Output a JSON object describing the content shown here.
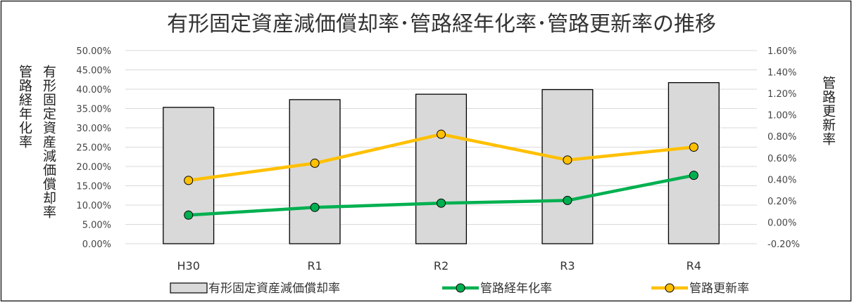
{
  "chart_data": {
    "type": "bar",
    "title": "有形固定資産減価償却率･管路経年化率･管路更新率の推移",
    "categories": [
      "H30",
      "R1",
      "R2",
      "R3",
      "R4"
    ],
    "series": [
      {
        "name": "有形固定資産減価償却率",
        "type": "bar",
        "axis": "left",
        "color": "#d9d9d9",
        "values": [
          35.3,
          37.3,
          38.7,
          39.9,
          41.7
        ]
      },
      {
        "name": "管路経年化率",
        "type": "line",
        "axis": "left",
        "color": "#00b050",
        "values": [
          7.4,
          9.4,
          10.5,
          11.2,
          17.7
        ]
      },
      {
        "name": "管路更新率",
        "type": "line",
        "axis": "right",
        "color": "#ffc000",
        "values": [
          0.39,
          0.55,
          0.82,
          0.58,
          0.7
        ]
      }
    ],
    "left_axis": {
      "min": 0,
      "max": 50,
      "ticks": [
        "0.00%",
        "5.00%",
        "10.00%",
        "15.00%",
        "20.00%",
        "25.00%",
        "30.00%",
        "35.00%",
        "40.00%",
        "45.00%",
        "50.00%"
      ],
      "labels": [
        "管路経年化率",
        "有形固定資産減価償却率"
      ]
    },
    "right_axis": {
      "min": -0.2,
      "max": 1.6,
      "ticks": [
        "-0.20%",
        "0.00%",
        "0.20%",
        "0.40%",
        "0.60%",
        "0.80%",
        "1.00%",
        "1.20%",
        "1.40%",
        "1.60%"
      ],
      "label": "管路更新率"
    },
    "grid": true,
    "legend": "bottom"
  }
}
